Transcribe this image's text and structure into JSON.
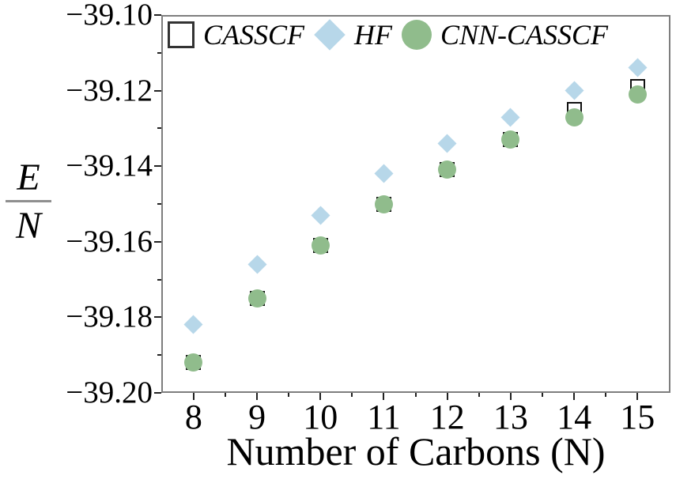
{
  "figure": {
    "ylabel": {
      "numerator": "E",
      "denominator": "N"
    },
    "xlabel": "Number of Carbons (N)"
  },
  "legend": {
    "items": [
      {
        "label": "CASSCF",
        "marker": "open-square"
      },
      {
        "label": "HF",
        "marker": "diamond"
      },
      {
        "label": "CNN-CASSCF",
        "marker": "circle"
      }
    ]
  },
  "colors": {
    "hf_marker": "#b7d7e9",
    "cnn_marker": "#90bc8c",
    "casscf_fill": "#ffffff",
    "casscf_stroke": "#111111",
    "frame": "#7e7e7e",
    "tick": "#222222",
    "text": "#000000"
  },
  "chart_data": {
    "type": "scatter",
    "title": "",
    "xlabel": "Number of Carbons (N)",
    "ylabel": "E/N",
    "x": [
      8,
      9,
      10,
      11,
      12,
      13,
      14,
      15
    ],
    "series": [
      {
        "name": "CASSCF",
        "marker": "open-square",
        "values": [
          -39.192,
          -39.175,
          -39.161,
          -39.15,
          -39.141,
          -39.133,
          -39.125,
          -39.119
        ]
      },
      {
        "name": "HF",
        "marker": "diamond",
        "values": [
          -39.182,
          -39.166,
          -39.153,
          -39.142,
          -39.134,
          -39.127,
          -39.12,
          -39.114
        ]
      },
      {
        "name": "CNN-CASSCF",
        "marker": "circle",
        "values": [
          -39.192,
          -39.175,
          -39.161,
          -39.15,
          -39.141,
          -39.133,
          -39.127,
          -39.121
        ]
      }
    ],
    "xlim": [
      7.49,
      15.52
    ],
    "ylim": [
      -39.2,
      -39.1
    ],
    "yticks": [
      {
        "v": -39.1,
        "label": "−39.10"
      },
      {
        "v": -39.12,
        "label": "−39.12"
      },
      {
        "v": -39.14,
        "label": "−39.14"
      },
      {
        "v": -39.16,
        "label": "−39.16"
      },
      {
        "v": -39.18,
        "label": "−39.18"
      },
      {
        "v": -39.2,
        "label": "−39.20"
      }
    ],
    "ytick_minor": [
      -39.11,
      -39.13,
      -39.15,
      -39.17,
      -39.19
    ],
    "xticks": [
      {
        "v": 8,
        "label": "8"
      },
      {
        "v": 9,
        "label": "9"
      },
      {
        "v": 10,
        "label": "10"
      },
      {
        "v": 11,
        "label": "11"
      },
      {
        "v": 12,
        "label": "12"
      },
      {
        "v": 13,
        "label": "13"
      },
      {
        "v": 14,
        "label": "14"
      },
      {
        "v": 15,
        "label": "15"
      }
    ],
    "xtick_minor": [
      8.5,
      9.5,
      10.5,
      11.5,
      12.5,
      13.5,
      14.5,
      15.5
    ],
    "grid": false,
    "legend_position": "top-left-inside"
  }
}
